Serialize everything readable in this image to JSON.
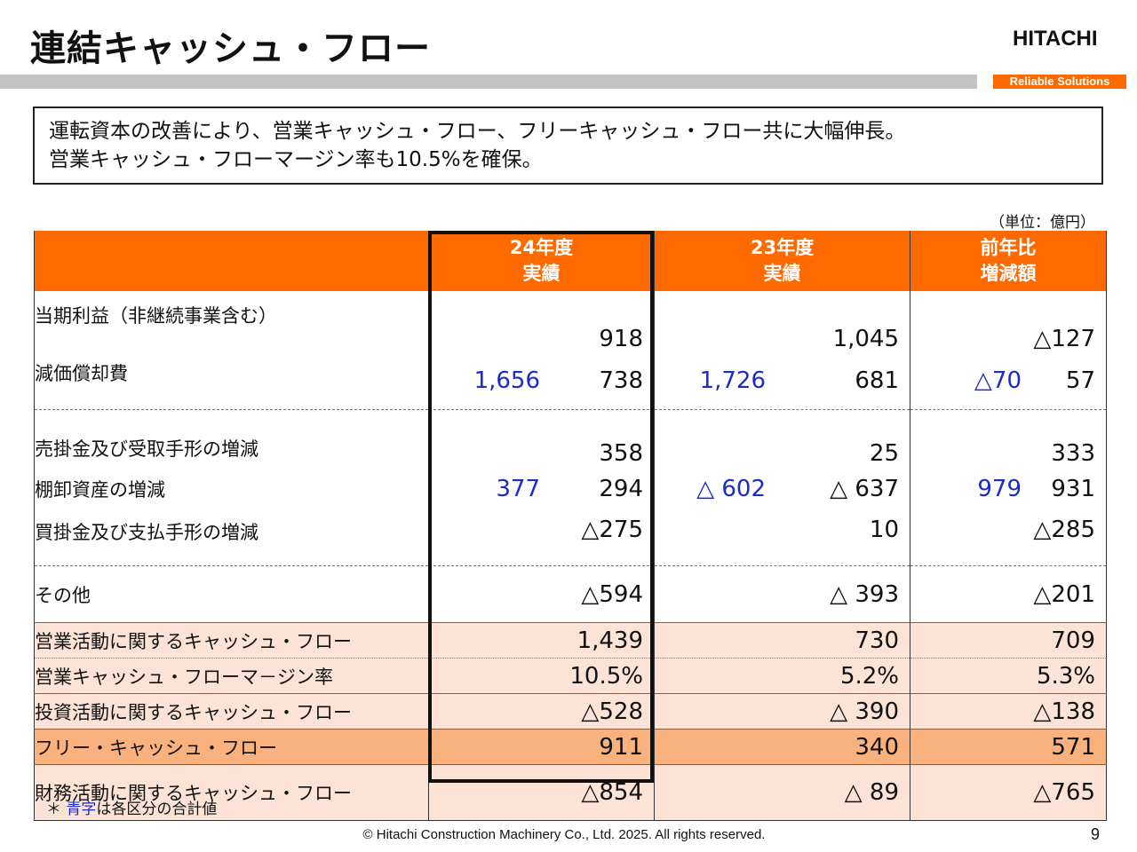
{
  "header": {
    "title": "連結キャッシュ・フロー",
    "logo": "HITACHI",
    "tagline": "Reliable Solutions"
  },
  "summary": {
    "line1": "運転資本の改善により、営業キャッシュ・フロー、フリーキャッシュ・フロー共に大幅伸長。",
    "line2": "営業キャッシュ・フローマージン率も10.5%を確保。"
  },
  "unit_note": "（単位：億円）",
  "colors": {
    "accent": "#ff6a00",
    "subtotal": "#1a2bc9",
    "pink_row": "#fce3d6",
    "orange_row": "#f9b27e"
  },
  "table": {
    "headers": {
      "fy24_line1": "24年度",
      "fy24_line2": "実績",
      "fy23_line1": "23年度",
      "fy23_line2": "実績",
      "yoy_line1": "前年比",
      "yoy_line2": "増減額"
    },
    "rows": {
      "net_income": {
        "label": "当期利益（非継続事業含む）",
        "fy24": "918",
        "fy23": "1,045",
        "yoy": "△127"
      },
      "depreciation": {
        "label": "減価償却費",
        "fy24_sub": "1,656",
        "fy24": "738",
        "fy23_sub": "1,726",
        "fy23": "681",
        "yoy_sub": "△70",
        "yoy": "57"
      },
      "receivables": {
        "label": "売掛金及び受取手形の増減",
        "fy24": "358",
        "fy23": "25",
        "yoy": "333"
      },
      "inventory": {
        "label": "棚卸資産の増減",
        "fy24_sub": "377",
        "fy24": "294",
        "fy23_sub": "△ 602",
        "fy23": "△ 637",
        "yoy_sub": "979",
        "yoy": "931"
      },
      "payables": {
        "label": "買掛金及び支払手形の増減",
        "fy24": "△275",
        "fy23": "10",
        "yoy": "△285"
      },
      "other": {
        "label": "その他",
        "fy24": "△594",
        "fy23": "△ 393",
        "yoy": "△201"
      },
      "operating_cf": {
        "label": "営業活動に関するキャッシュ・フロー",
        "fy24": "1,439",
        "fy23": "730",
        "yoy": "709"
      },
      "op_cf_margin": {
        "label": "営業キャッシュ・フローマ－ジン率",
        "fy24": "10.5%",
        "fy23": "5.2%",
        "yoy": "5.3%"
      },
      "investing_cf": {
        "label": "投資活動に関するキャッシュ・フロー",
        "fy24": "△528",
        "fy23": "△ 390",
        "yoy": "△138"
      },
      "free_cf": {
        "label": "フリー・キャッシュ・フロー",
        "fy24": "911",
        "fy23": "340",
        "yoy": "571"
      },
      "financing_cf": {
        "label": "財務活動に関するキャッシュ・フロー",
        "fy24": "△854",
        "fy23": "△ 89",
        "yoy": "△765"
      }
    }
  },
  "note": {
    "prefix": "＊ ",
    "blue_text": "青字",
    "rest": "は各区分の合計値"
  },
  "footer": "© Hitachi Construction Machinery Co., Ltd. 2025. All rights reserved.",
  "page_number": "9"
}
